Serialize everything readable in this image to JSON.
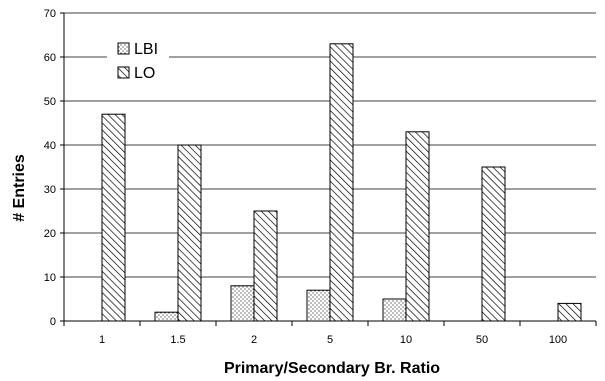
{
  "chart_data": {
    "type": "bar",
    "title": "",
    "xlabel": "Primary/Secondary Br. Ratio",
    "ylabel": "# Entries",
    "categories": [
      "1",
      "1.5",
      "2",
      "5",
      "10",
      "50",
      "100"
    ],
    "ylim": [
      0,
      70
    ],
    "yticks": [
      0,
      10,
      20,
      30,
      40,
      50,
      60,
      70
    ],
    "grid": true,
    "legend_position": "top-left",
    "series": [
      {
        "name": "LBI",
        "values": [
          0,
          2,
          8,
          7,
          5,
          0,
          0
        ],
        "pattern": "dots"
      },
      {
        "name": "LO",
        "values": [
          47,
          40,
          25,
          63,
          43,
          35,
          4
        ],
        "pattern": "diagonal-hatch"
      }
    ]
  }
}
